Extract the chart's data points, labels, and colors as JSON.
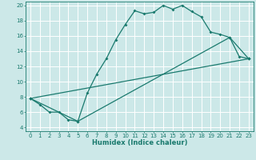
{
  "title": "",
  "xlabel": "Humidex (Indice chaleur)",
  "xlim": [
    -0.5,
    23.5
  ],
  "ylim": [
    3.5,
    20.5
  ],
  "yticks": [
    4,
    6,
    8,
    10,
    12,
    14,
    16,
    18,
    20
  ],
  "xticks": [
    0,
    1,
    2,
    3,
    4,
    5,
    6,
    7,
    8,
    9,
    10,
    11,
    12,
    13,
    14,
    15,
    16,
    17,
    18,
    19,
    20,
    21,
    22,
    23
  ],
  "bg_color": "#cce8e8",
  "grid_color": "#ffffff",
  "line_color": "#1a7a6e",
  "line1_x": [
    0,
    1,
    2,
    3,
    4,
    5,
    6,
    7,
    8,
    9,
    10,
    11,
    12,
    13,
    14,
    15,
    16,
    17,
    18,
    19,
    20,
    21,
    22,
    23
  ],
  "line1_y": [
    7.8,
    7.0,
    6.0,
    6.0,
    5.0,
    4.8,
    8.5,
    11.0,
    13.0,
    15.5,
    17.5,
    19.3,
    18.9,
    19.1,
    20.0,
    19.5,
    20.0,
    19.2,
    18.5,
    16.5,
    16.2,
    15.8,
    13.3,
    13.0
  ],
  "line2_x": [
    0,
    23
  ],
  "line2_y": [
    7.8,
    13.0
  ],
  "line3_x": [
    0,
    5,
    21,
    23
  ],
  "line3_y": [
    7.8,
    4.8,
    15.8,
    13.0
  ]
}
